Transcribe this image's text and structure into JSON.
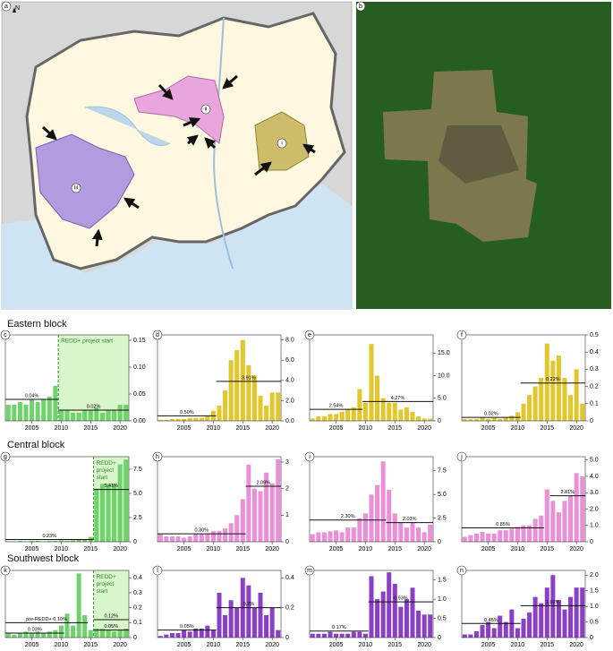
{
  "map": {
    "label": "a",
    "north": "N",
    "regions": [
      "i",
      "ii",
      "iii"
    ]
  },
  "photo": {
    "label": "b"
  },
  "sections": [
    "Eastern block",
    "Central block",
    "Southwest block"
  ],
  "chart_data": [
    {
      "type": "bar",
      "label": "c",
      "color": "#6fd36b",
      "x": [
        2001,
        2002,
        2003,
        2004,
        2005,
        2006,
        2007,
        2008,
        2009,
        2010,
        2011,
        2012,
        2013,
        2014,
        2015,
        2016,
        2017,
        2018,
        2019,
        2020,
        2021
      ],
      "values": [
        0.03,
        0.03,
        0.035,
        0.03,
        0.04,
        0.035,
        0.04,
        0.045,
        0.065,
        0.02,
        0.02,
        0.015,
        0.015,
        0.02,
        0.02,
        0.025,
        0.015,
        0.02,
        0.02,
        0.03,
        0.03
      ],
      "xlim": [
        2000.5,
        2021.5
      ],
      "xticks": [
        2005,
        2010,
        2015,
        2020
      ],
      "ylim": [
        0,
        0.16
      ],
      "yticks": [
        {
          "value": 0,
          "label": "0.00"
        },
        0.05,
        {
          "value": 0.1,
          "label": "0.10"
        },
        0.15
      ],
      "means": [
        {
          "label": "0.04%",
          "value": 0.04,
          "start": 2000.5,
          "end": 2009.5
        },
        {
          "label": "0.02%",
          "value": 0.02,
          "start": 2009.5,
          "end": 2021.5
        }
      ],
      "redd": {
        "x": 2009.5,
        "label": "REDD+ project start"
      }
    },
    {
      "type": "bar",
      "label": "d",
      "color": "#e3c62c",
      "x": [
        2001,
        2002,
        2003,
        2004,
        2005,
        2006,
        2007,
        2008,
        2009,
        2010,
        2011,
        2012,
        2013,
        2014,
        2015,
        2016,
        2017,
        2018,
        2019,
        2020,
        2021
      ],
      "values": [
        0.1,
        0.1,
        0.2,
        0.2,
        0.2,
        0.3,
        0.3,
        0.3,
        0.5,
        1.0,
        1.5,
        3.0,
        6.0,
        7.0,
        8.0,
        5.5,
        4.5,
        2.5,
        1.5,
        2.8,
        2.8
      ],
      "xlim": [
        2000.5,
        2021.5
      ],
      "xticks": [
        2005,
        2010,
        2015,
        2020
      ],
      "ylim": [
        0,
        8.5
      ],
      "yticks": [
        {
          "value": 0,
          "label": "0.0"
        },
        {
          "value": 2,
          "label": "2.0"
        },
        {
          "value": 4,
          "label": "4.0"
        },
        {
          "value": 6,
          "label": "6.0"
        },
        {
          "value": 8,
          "label": "8.0"
        }
      ],
      "means": [
        {
          "label": "0.50%",
          "value": 0.5,
          "start": 2000.5,
          "end": 2010.5
        },
        {
          "label": "3.91%",
          "value": 3.91,
          "start": 2010.5,
          "end": 2021.5
        }
      ]
    },
    {
      "type": "bar",
      "label": "e",
      "color": "#e3c62c",
      "x": [
        2001,
        2002,
        2003,
        2004,
        2005,
        2006,
        2007,
        2008,
        2009,
        2010,
        2011,
        2012,
        2013,
        2014,
        2015,
        2016,
        2017,
        2018,
        2019,
        2020,
        2021
      ],
      "values": [
        0.5,
        1,
        1,
        1.5,
        1.5,
        2,
        2.5,
        3,
        7,
        4,
        17,
        10,
        5,
        4,
        4,
        2.5,
        3,
        2,
        1,
        0.5,
        0.5
      ],
      "xlim": [
        2000.5,
        2021.5
      ],
      "xticks": [
        2005,
        2010,
        2015,
        2020
      ],
      "ylim": [
        0,
        19
      ],
      "yticks": [
        0,
        {
          "value": 5,
          "label": "5.0"
        },
        {
          "value": 10,
          "label": "10.0"
        },
        {
          "value": 15,
          "label": "15.0"
        }
      ],
      "means": [
        {
          "label": "2.54%",
          "value": 2.54,
          "start": 2000.5,
          "end": 2009.5
        },
        {
          "label": "4.27%",
          "value": 4.27,
          "start": 2009.5,
          "end": 2021.5
        }
      ]
    },
    {
      "type": "bar",
      "label": "f",
      "color": "#e3c62c",
      "x": [
        2001,
        2002,
        2003,
        2004,
        2005,
        2006,
        2007,
        2008,
        2009,
        2010,
        2011,
        2012,
        2013,
        2014,
        2015,
        2016,
        2017,
        2018,
        2019,
        2020,
        2021
      ],
      "values": [
        0.01,
        0.01,
        0.01,
        0.02,
        0.01,
        0.02,
        0.01,
        0.02,
        0.03,
        0.05,
        0.1,
        0.15,
        0.2,
        0.25,
        0.45,
        0.35,
        0.38,
        0.25,
        0.15,
        0.3,
        0.1
      ],
      "xlim": [
        2000.5,
        2021.5
      ],
      "xticks": [
        2005,
        2010,
        2015,
        2020
      ],
      "ylim": [
        0,
        0.5
      ],
      "yticks": [
        0,
        0.1,
        0.2,
        0.3,
        0.4,
        0.5
      ],
      "means": [
        {
          "label": "0.02%",
          "value": 0.02,
          "start": 2000.5,
          "end": 2010.5
        },
        {
          "label": "0.22%",
          "value": 0.22,
          "start": 2010.5,
          "end": 2021.5
        }
      ]
    },
    {
      "type": "bar",
      "label": "g",
      "color": "#6fd36b",
      "x": [
        2001,
        2002,
        2003,
        2004,
        2005,
        2006,
        2007,
        2008,
        2009,
        2010,
        2011,
        2012,
        2013,
        2014,
        2015,
        2016,
        2017,
        2018,
        2019,
        2020,
        2021
      ],
      "values": [
        0.05,
        0.05,
        0.1,
        0.05,
        0.1,
        0.1,
        0.05,
        0.1,
        0.1,
        0.15,
        0.1,
        0.15,
        0.2,
        0.2,
        0.5,
        5.5,
        6.0,
        6.0,
        6.0,
        8.0,
        8.5
      ],
      "xlim": [
        2000.5,
        2021.5
      ],
      "xticks": [
        2005,
        2010,
        2015,
        2020
      ],
      "ylim": [
        0,
        8.8
      ],
      "yticks": [
        0,
        2.5,
        {
          "value": 5,
          "label": "5.0"
        },
        7.5
      ],
      "means": [
        {
          "label": "0.23%",
          "value": 0.23,
          "start": 2000.5,
          "end": 2015.5
        },
        {
          "label": "5.41%",
          "value": 5.41,
          "start": 2015.5,
          "end": 2021.5
        }
      ],
      "redd": {
        "x": 2015.5,
        "label": "REDD+ project start"
      }
    },
    {
      "type": "bar",
      "label": "h",
      "color": "#ea8fd8",
      "x": [
        2001,
        2002,
        2003,
        2004,
        2005,
        2006,
        2007,
        2008,
        2009,
        2010,
        2011,
        2012,
        2013,
        2014,
        2015,
        2016,
        2017,
        2018,
        2019,
        2020,
        2021
      ],
      "values": [
        0.3,
        0.2,
        0.2,
        0.2,
        0.15,
        0.2,
        0.3,
        0.3,
        0.3,
        0.4,
        0.4,
        0.5,
        0.7,
        1.0,
        1.6,
        2.9,
        2.0,
        1.9,
        2.6,
        2.2,
        3.1
      ],
      "xlim": [
        2000.5,
        2021.5
      ],
      "xticks": [
        2005,
        2010,
        2015,
        2020
      ],
      "ylim": [
        0,
        3.2
      ],
      "yticks": [
        0,
        1,
        2,
        3
      ],
      "means": [
        {
          "label": "0.30%",
          "value": 0.3,
          "start": 2000.5,
          "end": 2015.5
        },
        {
          "label": "2.09%",
          "value": 2.09,
          "start": 2015.5,
          "end": 2021.5
        }
      ]
    },
    {
      "type": "bar",
      "label": "i",
      "color": "#ea8fd8",
      "x": [
        2001,
        2002,
        2003,
        2004,
        2005,
        2006,
        2007,
        2008,
        2009,
        2010,
        2011,
        2012,
        2013,
        2014,
        2015,
        2016,
        2017,
        2018,
        2019,
        2020,
        2021
      ],
      "values": [
        0.8,
        1,
        1,
        1.1,
        1.2,
        1,
        1.5,
        1.5,
        2.5,
        3,
        5,
        6,
        8.5,
        5.5,
        3,
        2,
        1.5,
        2,
        1.5,
        1,
        1.8
      ],
      "xlim": [
        2000.5,
        2021.5
      ],
      "xticks": [
        2005,
        2010,
        2015,
        2020
      ],
      "ylim": [
        0,
        9
      ],
      "yticks": [
        0,
        2.5,
        {
          "value": 5,
          "label": "5.0"
        },
        7.5
      ],
      "means": [
        {
          "label": "2.30%",
          "value": 2.3,
          "start": 2000.5,
          "end": 2013.5
        },
        {
          "label": "2.03%",
          "value": 2.03,
          "start": 2013.5,
          "end": 2021.5
        }
      ]
    },
    {
      "type": "bar",
      "label": "j",
      "color": "#ea8fd8",
      "x": [
        2001,
        2002,
        2003,
        2004,
        2005,
        2006,
        2007,
        2008,
        2009,
        2010,
        2011,
        2012,
        2013,
        2014,
        2015,
        2016,
        2017,
        2018,
        2019,
        2020,
        2021
      ],
      "values": [
        0.3,
        0.4,
        0.5,
        0.6,
        0.5,
        0.5,
        0.7,
        0.7,
        0.8,
        0.9,
        1,
        1,
        1.4,
        1.6,
        3.2,
        2.5,
        1.8,
        2.5,
        2.8,
        4.2,
        4.0
      ],
      "xlim": [
        2000.5,
        2021.5
      ],
      "xticks": [
        2005,
        2010,
        2015,
        2020
      ],
      "ylim": [
        0,
        5.2
      ],
      "yticks": [
        0,
        {
          "value": 1,
          "label": "1.0"
        },
        {
          "value": 2,
          "label": "2.0"
        },
        {
          "value": 3,
          "label": "3.0"
        },
        {
          "value": 4,
          "label": "4.0"
        },
        {
          "value": 5,
          "label": "5.0"
        }
      ],
      "means": [
        {
          "label": "0.85%",
          "value": 0.85,
          "start": 2000.5,
          "end": 2014.5
        },
        {
          "label": "2.81%",
          "value": 2.81,
          "start": 2015.5,
          "end": 2021.5
        }
      ]
    },
    {
      "type": "bar",
      "label": "k",
      "color": "#6fd36b",
      "x": [
        2001,
        2002,
        2003,
        2004,
        2005,
        2006,
        2007,
        2008,
        2009,
        2010,
        2011,
        2012,
        2013,
        2014,
        2015,
        2016,
        2017,
        2018,
        2019,
        2020,
        2021
      ],
      "values": [
        0.03,
        0.02,
        0.03,
        0.04,
        0.03,
        0.04,
        0.03,
        0.04,
        0.05,
        0.08,
        0.16,
        0.08,
        0.43,
        0.15,
        0.05,
        0.06,
        0.06,
        0.05,
        0.04,
        0.05,
        0.06
      ],
      "xlim": [
        2000.5,
        2021.5
      ],
      "xticks": [
        2005,
        2010,
        2015,
        2020
      ],
      "ylim": [
        0,
        0.45
      ],
      "yticks": [
        0,
        0.1,
        0.2,
        0.3,
        0.4
      ],
      "means": [
        {
          "label": "pre-REDD+ 0.10%",
          "value": 0.1,
          "start": 2000.5,
          "end": 2014.5
        },
        {
          "label": "0.03%",
          "value": 0.03,
          "start": 2000.5,
          "end": 2010.5
        },
        {
          "label": "0.12%",
          "value": 0.12,
          "start": 2015.5,
          "end": 2021.5
        },
        {
          "label": "0.05%",
          "value": 0.05,
          "start": 2015.5,
          "end": 2021.5
        }
      ],
      "redd": {
        "x": 2015.5,
        "label": "REDD+ project start"
      }
    },
    {
      "type": "bar",
      "label": "l",
      "color": "#8a3fc6",
      "x": [
        2001,
        2002,
        2003,
        2004,
        2005,
        2006,
        2007,
        2008,
        2009,
        2010,
        2011,
        2012,
        2013,
        2014,
        2015,
        2016,
        2017,
        2018,
        2019,
        2020,
        2021
      ],
      "values": [
        0.01,
        0.02,
        0.03,
        0.03,
        0.05,
        0.04,
        0.06,
        0.06,
        0.08,
        0.05,
        0.3,
        0.15,
        0.25,
        0.2,
        0.4,
        0.35,
        0.2,
        0.3,
        0.15,
        0.2,
        0.05
      ],
      "xlim": [
        2000.5,
        2021.5
      ],
      "xticks": [
        2005,
        2010,
        2015,
        2020
      ],
      "ylim": [
        0,
        0.45
      ],
      "yticks": [
        0,
        0.2,
        0.4
      ],
      "means": [
        {
          "label": "0.05%",
          "value": 0.05,
          "start": 2000.5,
          "end": 2010.5
        },
        {
          "label": "0.2%",
          "value": 0.2,
          "start": 2010.5,
          "end": 2021.5
        }
      ]
    },
    {
      "type": "bar",
      "label": "m",
      "color": "#8a3fc6",
      "x": [
        2001,
        2002,
        2003,
        2004,
        2005,
        2006,
        2007,
        2008,
        2009,
        2010,
        2011,
        2012,
        2013,
        2014,
        2015,
        2016,
        2017,
        2018,
        2019,
        2020,
        2021
      ],
      "values": [
        0.1,
        0.1,
        0.1,
        0.15,
        0.1,
        0.1,
        0.1,
        0.15,
        0.15,
        0.1,
        1.6,
        1.0,
        1.2,
        1.7,
        1.4,
        0.8,
        1.0,
        1.3,
        0.7,
        0.6,
        0.6
      ],
      "xlim": [
        2000.5,
        2021.5
      ],
      "xticks": [
        2005,
        2010,
        2015,
        2020
      ],
      "ylim": [
        0,
        1.75
      ],
      "yticks": [
        0,
        0.5,
        {
          "value": 1,
          "label": "1.0"
        },
        1.5
      ],
      "means": [
        {
          "label": "0.17%",
          "value": 0.17,
          "start": 2000.5,
          "end": 2010.5
        },
        {
          "label": "0.93%",
          "value": 0.93,
          "start": 2010.5,
          "end": 2021.5
        }
      ]
    },
    {
      "type": "bar",
      "label": "n",
      "color": "#8a3fc6",
      "x": [
        2001,
        2002,
        2003,
        2004,
        2005,
        2006,
        2007,
        2008,
        2009,
        2010,
        2011,
        2012,
        2013,
        2014,
        2015,
        2016,
        2017,
        2018,
        2019,
        2020,
        2021
      ],
      "values": [
        0.1,
        0.1,
        0.2,
        0.4,
        0.5,
        0.3,
        0.7,
        0.5,
        0.9,
        0.3,
        0.6,
        0.8,
        1.3,
        1.1,
        1.6,
        2.0,
        1.2,
        0.9,
        1.3,
        1.6,
        1.6
      ],
      "xlim": [
        2000.5,
        2021.5
      ],
      "xticks": [
        2005,
        2010,
        2015,
        2020
      ],
      "ylim": [
        0,
        2.15
      ],
      "yticks": [
        0,
        0.5,
        {
          "value": 1,
          "label": "1.0"
        },
        1.5,
        {
          "value": 2,
          "label": "2.0"
        }
      ],
      "means": [
        {
          "label": "0.45%",
          "value": 0.45,
          "start": 2000.5,
          "end": 2010.5
        },
        {
          "label": "1.02%",
          "value": 1.02,
          "start": 2010.5,
          "end": 2021.5
        }
      ]
    }
  ]
}
